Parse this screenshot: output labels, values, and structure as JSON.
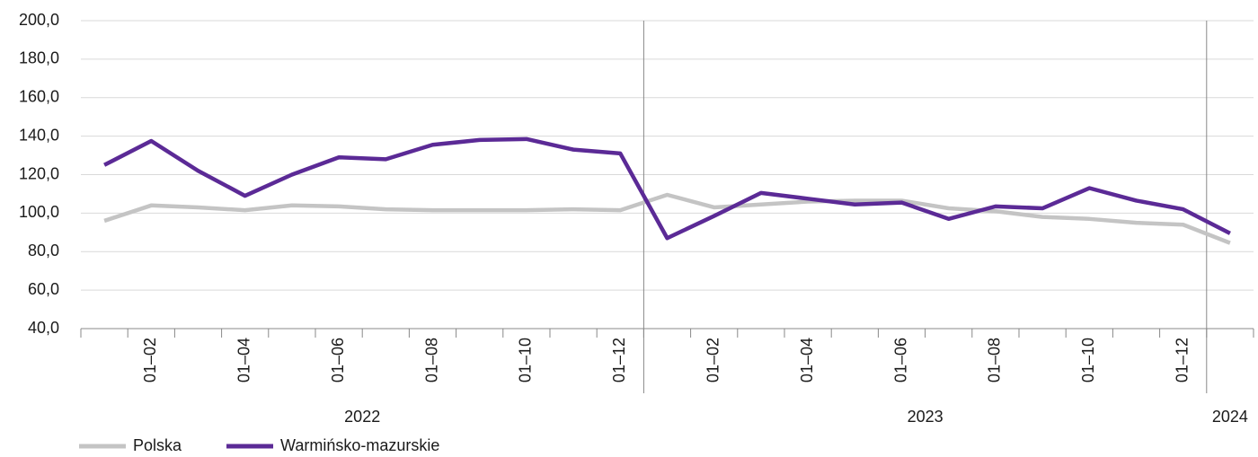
{
  "chart_data": {
    "type": "line",
    "categories": [
      null,
      "01–02",
      null,
      "01–04",
      null,
      "01–06",
      null,
      "01–08",
      null,
      "01–10",
      null,
      "01–12",
      null,
      "01–02",
      null,
      "01–04",
      null,
      "01–06",
      null,
      "01–08",
      null,
      "01–10",
      null,
      "01–12",
      null
    ],
    "x_groups": [
      {
        "label": "2022",
        "count": 12
      },
      {
        "label": "2023",
        "count": 12
      },
      {
        "label": "2024",
        "count": 1
      }
    ],
    "series": [
      {
        "name": "Polska",
        "color": "#c4c4c4",
        "values": [
          96,
          104,
          103,
          101.5,
          104,
          103.5,
          102,
          101.5,
          101.5,
          101.5,
          102,
          101.5,
          109.5,
          103,
          104.5,
          106,
          106.5,
          106.5,
          102.5,
          101,
          98,
          97,
          95,
          94,
          84.5
        ]
      },
      {
        "name": "Warmińsko-mazurskie",
        "color": "#5b2a96",
        "values": [
          125,
          137.5,
          122,
          109,
          120,
          129,
          128,
          135.5,
          138,
          138.5,
          133,
          131,
          87,
          98.5,
          110.5,
          107.5,
          104.5,
          105.5,
          97,
          103.5,
          102.5,
          113,
          106.5,
          102,
          89.5
        ]
      }
    ],
    "ylim": [
      40,
      200
    ],
    "yticks": [
      {
        "value": 40,
        "label": "40,0"
      },
      {
        "value": 60,
        "label": "60,0"
      },
      {
        "value": 80,
        "label": "80,0"
      },
      {
        "value": 100,
        "label": "100,0"
      },
      {
        "value": 120,
        "label": "120,0"
      },
      {
        "value": 140,
        "label": "140,0"
      },
      {
        "value": 160,
        "label": "160,0"
      },
      {
        "value": 180,
        "label": "180,0"
      },
      {
        "value": 200,
        "label": "200,0"
      }
    ],
    "grid": true,
    "legend": "bottom"
  }
}
